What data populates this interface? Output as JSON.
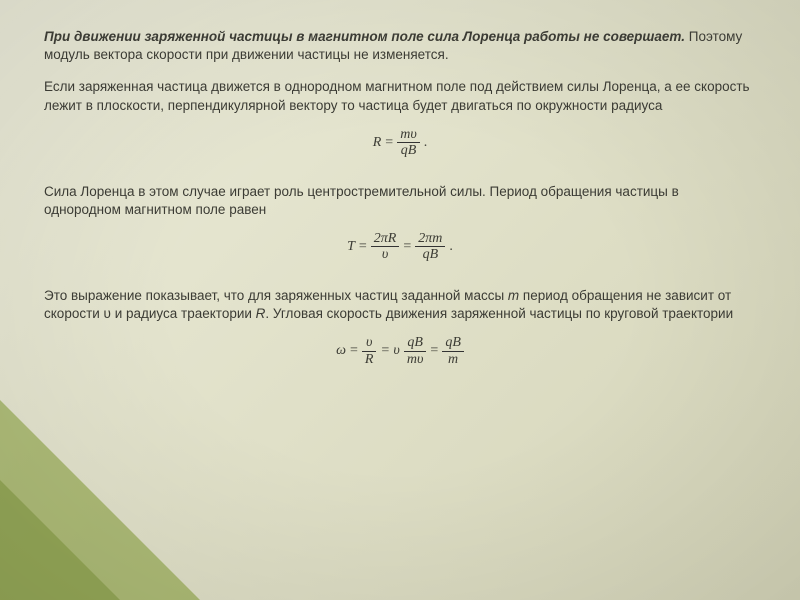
{
  "colors": {
    "bg_light": "#ebebd9",
    "bg_mid": "#e0e0c8",
    "bg_dark": "#d4d4b8",
    "accent": "#829b32",
    "text": "#3b3b34"
  },
  "typography": {
    "body_family": "Segoe UI, Tahoma, Arial, sans-serif",
    "formula_family": "Times New Roman, serif",
    "body_size_pt": 10,
    "lead_bold_weight": 700
  },
  "lead": {
    "bold": "При движении заряженной частицы в магнитном поле сила Лоренца работы не совершает.",
    "rest": " Поэтому модуль вектора скорости при движении частицы не изменяется."
  },
  "p1": "Если заряженная частица движется в однородном магнитном поле под действием силы Лоренца, а ее скорость лежит в плоскости, перпендикулярной вектору то частица будет двигаться по окружности радиуса",
  "formula1": {
    "lhs": "R",
    "eq": "=",
    "num": "mυ",
    "den": "qB",
    "tail": "."
  },
  "p2": "Сила Лоренца в этом случае играет роль центростремительной силы. Период обращения частицы в однородном магнитном поле равен",
  "formula2": {
    "lhs": "T",
    "eq": "=",
    "f1_num": "2πR",
    "f1_den": "υ",
    "eq2": "=",
    "f2_num": "2πm",
    "f2_den": "qB",
    "tail": "."
  },
  "p3_a": "Это выражение показывает, что для заряженных частиц заданной массы ",
  "p3_m": "m",
  "p3_b": " период обращения не зависит от скорости υ и радиуса траектории ",
  "p3_R": "R",
  "p3_c": ". Угловая скорость движения заряженной частицы по круговой траектории",
  "formula3": {
    "lhs": "ω",
    "eq": "=",
    "f1_num": "υ",
    "f1_den": "R",
    "mid": "= υ",
    "f2_num": "qB",
    "f2_den": "mυ",
    "eq2": "=",
    "f3_num": "qB",
    "f3_den": "m"
  }
}
